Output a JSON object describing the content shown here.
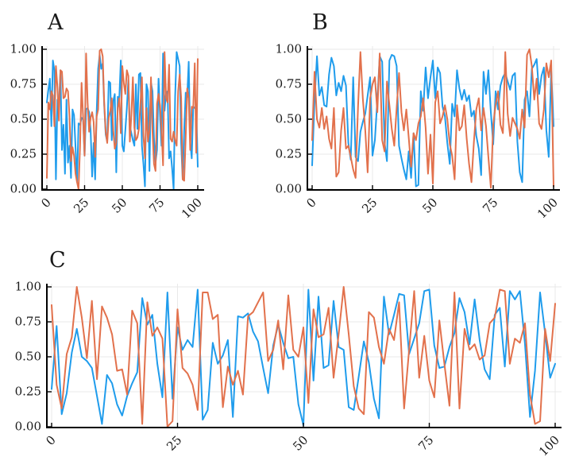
{
  "figure": {
    "background": "#ffffff",
    "axis_color": "#000000",
    "grid_color": "#e9e9e9",
    "tick_color": "#000000",
    "series_palette": [
      "#1f9cec",
      "#e2714c"
    ]
  },
  "chart_data": [
    {
      "type": "line",
      "title": "A",
      "xlabel": "",
      "ylabel": "",
      "xlim": [
        0,
        100
      ],
      "ylim": [
        0,
        1
      ],
      "grid": true,
      "legend": "none",
      "x_ticks": {
        "values": [
          0,
          25,
          50,
          75,
          100
        ],
        "labels": [
          "0",
          "25",
          "50",
          "75",
          "100"
        ]
      },
      "y_ticks": {
        "values": [
          0,
          0.25,
          0.5,
          0.75,
          1
        ],
        "labels": [
          "0.00",
          "0.25",
          "0.50",
          "0.75",
          "1.00"
        ]
      },
      "series": [
        {
          "name": "series-1-blue",
          "color": "#1f9cec",
          "values": [
            0.62,
            0.71,
            0.79,
            0.45,
            0.92,
            0.85,
            0.07,
            0.64,
            0.6,
            0.85,
            0.28,
            0.46,
            0.11,
            0.64,
            0.19,
            0.31,
            0.08,
            0.57,
            0.53,
            0.3,
            0.05,
            0.47,
            0.46,
            0.51,
            0.5,
            0.24,
            0.57,
            0.58,
            0.55,
            0.42,
            0.09,
            0.33,
            0.07,
            0.55,
            0.86,
            0.96,
            0.86,
            0.9,
            0.6,
            0.39,
            0.34,
            0.77,
            0.76,
            0.35,
            0.63,
            0.68,
            0.12,
            0.66,
            0.65,
            0.92,
            0.31,
            0.27,
            0.42,
            0.58,
            0.78,
            0.45,
            0.4,
            0.35,
            0.31,
            0.75,
            0.43,
            0.82,
            0.83,
            0.31,
            0.18,
            0.02,
            0.75,
            0.7,
            0.13,
            0.76,
            0.7,
            0.36,
            0.19,
            0.28,
            0.79,
            0.52,
            0.31,
            0.97,
            0.56,
            0.69,
            0.7,
            0.22,
            0.27,
            0.15,
            0.0,
            0.66,
            0.98,
            0.93,
            0.88,
            0.33,
            0.07,
            0.42,
            0.69,
            0.66,
            0.91,
            0.34,
            0.22,
            0.59,
            0.58,
            0.57,
            0.16
          ]
        },
        {
          "name": "series-2-orange",
          "color": "#e2714c",
          "values": [
            0.08,
            0.62,
            0.57,
            0.7,
            0.67,
            0.45,
            0.88,
            0.73,
            0.49,
            0.85,
            0.84,
            0.65,
            0.66,
            0.72,
            0.7,
            0.52,
            0.2,
            0.3,
            0.24,
            0.11,
            0.05,
            0.0,
            0.31,
            0.76,
            0.52,
            0.24,
            0.97,
            0.62,
            0.41,
            0.51,
            0.55,
            0.48,
            0.23,
            0.52,
            0.57,
            0.99,
            1.0,
            0.95,
            0.62,
            0.41,
            0.33,
            0.51,
            0.56,
            0.65,
            0.42,
            0.29,
            0.33,
            0.58,
            0.65,
            0.4,
            0.88,
            0.76,
            0.68,
            0.85,
            0.81,
            0.34,
            0.53,
            0.8,
            0.44,
            0.35,
            0.37,
            0.43,
            0.61,
            0.8,
            0.38,
            0.22,
            0.58,
            0.34,
            0.42,
            0.8,
            0.41,
            0.18,
            0.13,
            0.61,
            0.68,
            0.6,
            0.42,
            0.17,
            0.98,
            0.65,
            0.62,
            0.89,
            0.36,
            0.34,
            0.41,
            0.35,
            0.31,
            0.7,
            0.82,
            0.65,
            0.07,
            0.06,
            0.37,
            0.72,
            0.65,
            0.28,
            0.59,
            0.58,
            0.9,
            0.26,
            0.93
          ]
        }
      ]
    },
    {
      "type": "line",
      "title": "B",
      "xlabel": "",
      "ylabel": "",
      "xlim": [
        0,
        100
      ],
      "ylim": [
        0,
        1
      ],
      "grid": true,
      "legend": "none",
      "x_ticks": {
        "values": [
          0,
          25,
          50,
          75,
          100
        ],
        "labels": [
          "0",
          "25",
          "50",
          "75",
          "100"
        ]
      },
      "y_ticks": {
        "values": [
          0,
          0.25,
          0.5,
          0.75,
          1
        ],
        "labels": [
          "0.00",
          "0.25",
          "0.50",
          "0.75",
          "1.00"
        ]
      },
      "series": [
        {
          "name": "series-1-blue",
          "color": "#1f9cec",
          "values": [
            0.17,
            0.63,
            0.95,
            0.67,
            0.73,
            0.6,
            0.59,
            0.82,
            0.94,
            0.88,
            0.67,
            0.76,
            0.7,
            0.81,
            0.74,
            0.33,
            0.21,
            0.8,
            0.23,
            0.2,
            0.41,
            0.48,
            0.54,
            0.67,
            0.8,
            0.24,
            0.35,
            0.64,
            0.95,
            0.91,
            0.33,
            0.2,
            0.92,
            0.96,
            0.95,
            0.88,
            0.31,
            0.22,
            0.14,
            0.07,
            0.27,
            0.08,
            0.4,
            0.02,
            0.03,
            0.7,
            0.56,
            0.87,
            0.65,
            0.8,
            0.92,
            0.65,
            0.87,
            0.83,
            0.59,
            0.52,
            0.33,
            0.18,
            0.61,
            0.52,
            0.85,
            0.72,
            0.64,
            0.71,
            0.63,
            0.67,
            0.52,
            0.56,
            0.38,
            0.29,
            0.1,
            0.84,
            0.68,
            0.85,
            0.55,
            0.32,
            0.7,
            0.57,
            0.74,
            0.8,
            0.83,
            0.77,
            0.71,
            0.81,
            0.83,
            0.34,
            0.12,
            0.05,
            0.64,
            0.7,
            0.52,
            0.86,
            0.89,
            0.93,
            0.68,
            0.81,
            0.87,
            0.42,
            0.23,
            0.85,
            0.45
          ]
        },
        {
          "name": "series-2-orange",
          "color": "#e2714c",
          "values": [
            0.35,
            0.84,
            0.5,
            0.44,
            0.58,
            0.43,
            0.52,
            0.36,
            0.29,
            0.58,
            0.09,
            0.12,
            0.42,
            0.58,
            0.29,
            0.31,
            0.23,
            0.14,
            0.08,
            0.59,
            0.98,
            0.65,
            0.42,
            0.12,
            0.65,
            0.75,
            0.8,
            0.55,
            0.97,
            0.35,
            0.27,
            0.77,
            0.6,
            0.43,
            0.31,
            0.58,
            0.83,
            0.55,
            0.42,
            0.57,
            0.37,
            0.16,
            0.4,
            0.35,
            0.47,
            0.52,
            0.65,
            0.44,
            0.11,
            0.39,
            0.04,
            0.62,
            0.7,
            0.47,
            0.52,
            0.6,
            0.5,
            0.32,
            0.24,
            0.07,
            0.6,
            0.42,
            0.45,
            0.6,
            0.36,
            0.18,
            0.05,
            0.34,
            0.57,
            0.65,
            0.42,
            0.58,
            0.45,
            0.23,
            0.01,
            0.46,
            0.6,
            0.7,
            0.46,
            0.4,
            0.98,
            0.54,
            0.38,
            0.51,
            0.47,
            0.43,
            0.36,
            0.57,
            0.44,
            0.96,
            1.0,
            0.88,
            0.64,
            0.79,
            0.47,
            0.43,
            0.57,
            0.9,
            0.8,
            0.92,
            0.02
          ]
        }
      ]
    },
    {
      "type": "line",
      "title": "C",
      "xlabel": "",
      "ylabel": "",
      "xlim": [
        0,
        100
      ],
      "ylim": [
        0,
        1
      ],
      "grid": true,
      "legend": "none",
      "x_ticks": {
        "values": [
          0,
          25,
          50,
          75,
          100
        ],
        "labels": [
          "0",
          "25",
          "50",
          "75",
          "100"
        ]
      },
      "y_ticks": {
        "values": [
          0,
          0.25,
          0.5,
          0.75,
          1
        ],
        "labels": [
          "0.00",
          "0.25",
          "0.50",
          "0.75",
          "1.00"
        ]
      },
      "series": [
        {
          "name": "series-1-blue",
          "color": "#1f9cec",
          "values": [
            0.27,
            0.72,
            0.09,
            0.24,
            0.53,
            0.7,
            0.5,
            0.47,
            0.42,
            0.22,
            0.02,
            0.37,
            0.31,
            0.16,
            0.08,
            0.22,
            0.31,
            0.39,
            0.92,
            0.73,
            0.8,
            0.45,
            0.21,
            0.96,
            0.2,
            0.71,
            0.55,
            0.62,
            0.57,
            0.98,
            0.05,
            0.12,
            0.6,
            0.45,
            0.51,
            0.62,
            0.07,
            0.79,
            0.78,
            0.81,
            0.68,
            0.61,
            0.42,
            0.24,
            0.58,
            0.73,
            0.6,
            0.49,
            0.5,
            0.16,
            0.01,
            0.98,
            0.33,
            0.93,
            0.42,
            0.44,
            0.9,
            0.57,
            0.55,
            0.14,
            0.12,
            0.36,
            0.61,
            0.46,
            0.2,
            0.06,
            0.93,
            0.66,
            0.8,
            0.95,
            0.94,
            0.52,
            0.63,
            0.74,
            0.97,
            0.98,
            0.58,
            0.42,
            0.43,
            0.57,
            0.67,
            0.92,
            0.82,
            0.59,
            0.91,
            0.62,
            0.41,
            0.34,
            0.8,
            0.85,
            0.43,
            0.97,
            0.91,
            0.97,
            0.59,
            0.07,
            0.4,
            0.96,
            0.67,
            0.35,
            0.45
          ]
        },
        {
          "name": "series-2-orange",
          "color": "#e2714c",
          "values": [
            0.87,
            0.3,
            0.13,
            0.52,
            0.64,
            1.0,
            0.78,
            0.49,
            0.9,
            0.34,
            0.86,
            0.78,
            0.66,
            0.4,
            0.41,
            0.23,
            0.83,
            0.74,
            0.02,
            0.89,
            0.65,
            0.71,
            0.63,
            0.0,
            0.04,
            0.84,
            0.42,
            0.38,
            0.3,
            0.12,
            0.96,
            0.96,
            0.77,
            0.8,
            0.14,
            0.43,
            0.3,
            0.4,
            0.23,
            0.79,
            0.82,
            0.89,
            0.96,
            0.47,
            0.55,
            0.76,
            0.41,
            0.94,
            0.55,
            0.5,
            0.71,
            0.17,
            0.84,
            0.64,
            0.66,
            0.85,
            0.35,
            0.66,
            1.0,
            0.66,
            0.29,
            0.13,
            0.09,
            0.82,
            0.78,
            0.57,
            0.45,
            0.7,
            0.62,
            0.89,
            0.13,
            0.55,
            0.97,
            0.35,
            0.65,
            0.33,
            0.21,
            0.76,
            0.45,
            0.15,
            0.96,
            0.13,
            0.7,
            0.55,
            0.59,
            0.48,
            0.51,
            0.74,
            0.78,
            0.98,
            0.97,
            0.45,
            0.63,
            0.6,
            0.74,
            0.23,
            0.02,
            0.04,
            0.7,
            0.47,
            0.88
          ]
        }
      ]
    }
  ]
}
